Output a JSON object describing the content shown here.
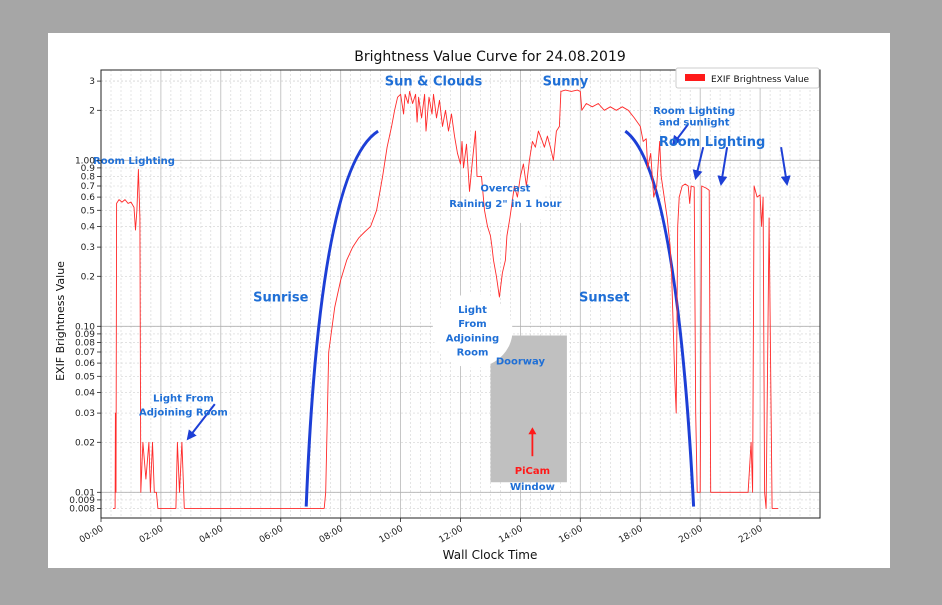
{
  "chart_data": {
    "type": "line",
    "title": "Brightness Value Curve for 24.08.2019",
    "xlabel": "Wall Clock Time",
    "ylabel": "EXIF Brightness Value",
    "yscale": "log",
    "xlim": [
      0,
      24
    ],
    "ylim": [
      0.007,
      3.5
    ],
    "grid": true,
    "legend": {
      "position": "top-right",
      "entries": [
        "EXIF Brightness Value"
      ]
    },
    "x_ticks": [
      {
        "v": 0,
        "label": "00:00"
      },
      {
        "v": 2,
        "label": "02:00"
      },
      {
        "v": 4,
        "label": "04:00"
      },
      {
        "v": 6,
        "label": "06:00"
      },
      {
        "v": 8,
        "label": "08:00"
      },
      {
        "v": 10,
        "label": "10:00"
      },
      {
        "v": 12,
        "label": "12:00"
      },
      {
        "v": 14,
        "label": "14:00"
      },
      {
        "v": 16,
        "label": "16:00"
      },
      {
        "v": 18,
        "label": "18:00"
      },
      {
        "v": 20,
        "label": "20:00"
      },
      {
        "v": 22,
        "label": "22:00"
      }
    ],
    "y_ticks": [
      {
        "v": 3,
        "label": "3"
      },
      {
        "v": 2,
        "label": "2"
      },
      {
        "v": 1,
        "label": "1.00"
      },
      {
        "v": 0.9,
        "label": "0.9"
      },
      {
        "v": 0.8,
        "label": "0.8"
      },
      {
        "v": 0.7,
        "label": "0.7"
      },
      {
        "v": 0.6,
        "label": "0.6"
      },
      {
        "v": 0.5,
        "label": "0.5"
      },
      {
        "v": 0.4,
        "label": "0.4"
      },
      {
        "v": 0.3,
        "label": "0.3"
      },
      {
        "v": 0.2,
        "label": "0.2"
      },
      {
        "v": 0.1,
        "label": "0.10"
      },
      {
        "v": 0.09,
        "label": "0.09"
      },
      {
        "v": 0.08,
        "label": "0.08"
      },
      {
        "v": 0.07,
        "label": "0.07"
      },
      {
        "v": 0.06,
        "label": "0.06"
      },
      {
        "v": 0.05,
        "label": "0.05"
      },
      {
        "v": 0.04,
        "label": "0.04"
      },
      {
        "v": 0.03,
        "label": "0.03"
      },
      {
        "v": 0.02,
        "label": "0.02"
      },
      {
        "v": 0.01,
        "label": "0.01"
      },
      {
        "v": 0.009,
        "label": "0.009"
      },
      {
        "v": 0.008,
        "label": "0.008"
      }
    ],
    "series": [
      {
        "name": "EXIF Brightness Value",
        "color": "#ff2a2a",
        "points": [
          [
            0.4,
            0.008
          ],
          [
            0.47,
            0.008
          ],
          [
            0.48,
            0.03
          ],
          [
            0.5,
            0.01
          ],
          [
            0.52,
            0.55
          ],
          [
            0.6,
            0.58
          ],
          [
            0.7,
            0.56
          ],
          [
            0.8,
            0.58
          ],
          [
            0.9,
            0.55
          ],
          [
            1.0,
            0.56
          ],
          [
            1.1,
            0.52
          ],
          [
            1.15,
            0.38
          ],
          [
            1.2,
            0.5
          ],
          [
            1.25,
            0.88
          ],
          [
            1.3,
            0.45
          ],
          [
            1.33,
            0.01
          ],
          [
            1.4,
            0.02
          ],
          [
            1.5,
            0.012
          ],
          [
            1.6,
            0.02
          ],
          [
            1.65,
            0.01
          ],
          [
            1.72,
            0.02
          ],
          [
            1.78,
            0.01
          ],
          [
            1.85,
            0.01
          ],
          [
            1.9,
            0.008
          ],
          [
            2.5,
            0.008
          ],
          [
            2.55,
            0.02
          ],
          [
            2.62,
            0.01
          ],
          [
            2.7,
            0.02
          ],
          [
            2.78,
            0.008
          ],
          [
            7.0,
            0.008
          ],
          [
            7.45,
            0.008
          ],
          [
            7.5,
            0.01
          ],
          [
            7.6,
            0.07
          ],
          [
            7.8,
            0.13
          ],
          [
            8.0,
            0.19
          ],
          [
            8.2,
            0.25
          ],
          [
            8.4,
            0.3
          ],
          [
            8.6,
            0.34
          ],
          [
            8.8,
            0.37
          ],
          [
            9.0,
            0.4
          ],
          [
            9.2,
            0.5
          ],
          [
            9.4,
            0.8
          ],
          [
            9.55,
            1.2
          ],
          [
            9.7,
            1.6
          ],
          [
            9.8,
            2.0
          ],
          [
            9.9,
            2.4
          ],
          [
            10.0,
            2.5
          ],
          [
            10.1,
            1.9
          ],
          [
            10.15,
            2.5
          ],
          [
            10.25,
            2.2
          ],
          [
            10.3,
            2.6
          ],
          [
            10.4,
            2.2
          ],
          [
            10.5,
            2.5
          ],
          [
            10.55,
            1.7
          ],
          [
            10.6,
            2.4
          ],
          [
            10.7,
            1.8
          ],
          [
            10.8,
            2.5
          ],
          [
            10.85,
            1.5
          ],
          [
            10.95,
            2.4
          ],
          [
            11.05,
            1.9
          ],
          [
            11.1,
            2.5
          ],
          [
            11.2,
            1.8
          ],
          [
            11.3,
            2.3
          ],
          [
            11.4,
            1.6
          ],
          [
            11.5,
            2.0
          ],
          [
            11.6,
            1.5
          ],
          [
            11.7,
            1.9
          ],
          [
            11.8,
            1.4
          ],
          [
            11.9,
            1.1
          ],
          [
            12.0,
            0.95
          ],
          [
            12.05,
            1.3
          ],
          [
            12.1,
            0.9
          ],
          [
            12.2,
            1.25
          ],
          [
            12.3,
            0.65
          ],
          [
            12.4,
            1.0
          ],
          [
            12.5,
            1.5
          ],
          [
            12.55,
            0.8
          ],
          [
            12.7,
            0.8
          ],
          [
            12.8,
            0.5
          ],
          [
            12.9,
            0.4
          ],
          [
            13.0,
            0.35
          ],
          [
            13.05,
            0.3
          ],
          [
            13.1,
            0.25
          ],
          [
            13.2,
            0.2
          ],
          [
            13.3,
            0.15
          ],
          [
            13.4,
            0.21
          ],
          [
            13.5,
            0.25
          ],
          [
            13.55,
            0.35
          ],
          [
            13.65,
            0.45
          ],
          [
            13.8,
            0.7
          ],
          [
            13.9,
            0.6
          ],
          [
            14.0,
            0.8
          ],
          [
            14.1,
            0.95
          ],
          [
            14.2,
            0.7
          ],
          [
            14.3,
            1.0
          ],
          [
            14.4,
            1.3
          ],
          [
            14.5,
            1.2
          ],
          [
            14.6,
            1.5
          ],
          [
            14.7,
            1.35
          ],
          [
            14.8,
            1.2
          ],
          [
            14.9,
            1.4
          ],
          [
            15.0,
            1.2
          ],
          [
            15.1,
            1.0
          ],
          [
            15.2,
            1.5
          ],
          [
            15.3,
            1.6
          ],
          [
            15.35,
            2.6
          ],
          [
            15.5,
            2.65
          ],
          [
            15.7,
            2.6
          ],
          [
            15.9,
            2.65
          ],
          [
            16.0,
            2.6
          ],
          [
            16.05,
            2.0
          ],
          [
            16.2,
            2.2
          ],
          [
            16.4,
            2.1
          ],
          [
            16.6,
            2.2
          ],
          [
            16.8,
            2.0
          ],
          [
            17.0,
            2.1
          ],
          [
            17.2,
            2.0
          ],
          [
            17.4,
            2.1
          ],
          [
            17.6,
            2.0
          ],
          [
            17.8,
            1.8
          ],
          [
            18.0,
            1.6
          ],
          [
            18.1,
            1.3
          ],
          [
            18.2,
            1.35
          ],
          [
            18.25,
            0.9
          ],
          [
            18.35,
            1.1
          ],
          [
            18.45,
            0.6
          ],
          [
            18.55,
            0.7
          ],
          [
            18.65,
            1.3
          ],
          [
            18.7,
            0.8
          ],
          [
            18.8,
            0.6
          ],
          [
            18.9,
            0.45
          ],
          [
            19.0,
            0.3
          ],
          [
            19.05,
            0.2
          ],
          [
            19.1,
            0.1
          ],
          [
            19.15,
            0.05
          ],
          [
            19.2,
            0.03
          ],
          [
            19.25,
            0.4
          ],
          [
            19.3,
            0.6
          ],
          [
            19.4,
            0.7
          ],
          [
            19.5,
            0.72
          ],
          [
            19.6,
            0.7
          ],
          [
            19.65,
            0.55
          ],
          [
            19.7,
            0.7
          ],
          [
            19.8,
            0.69
          ],
          [
            19.85,
            0.03
          ],
          [
            19.9,
            0.01
          ],
          [
            20.0,
            0.01
          ],
          [
            20.05,
            0.7
          ],
          [
            20.2,
            0.68
          ],
          [
            20.3,
            0.66
          ],
          [
            20.35,
            0.01
          ],
          [
            20.5,
            0.01
          ],
          [
            21.5,
            0.01
          ],
          [
            21.6,
            0.01
          ],
          [
            21.7,
            0.02
          ],
          [
            21.75,
            0.01
          ],
          [
            21.8,
            0.7
          ],
          [
            21.9,
            0.6
          ],
          [
            22.0,
            0.62
          ],
          [
            22.05,
            0.4
          ],
          [
            22.1,
            0.6
          ],
          [
            22.15,
            0.01
          ],
          [
            22.2,
            0.008
          ],
          [
            22.3,
            0.45
          ],
          [
            22.4,
            0.008
          ],
          [
            22.6,
            0.008
          ]
        ]
      }
    ],
    "annotations": [
      {
        "text": "Room Lighting",
        "x": 1.1,
        "y": 1.0
      },
      {
        "text": "Sun & Clouds",
        "x": 11.1,
        "y": 3.0
      },
      {
        "text": "Sunny",
        "x": 15.5,
        "y": 3.0
      },
      {
        "text": "Room Lighting",
        "x": 19.8,
        "y": 2.0
      },
      {
        "text": "and sunlight",
        "x": 19.8,
        "y": 1.7
      },
      {
        "text": "Room Lighting",
        "x": 20.4,
        "y": 1.3
      },
      {
        "text": "Overcast",
        "x": 13.5,
        "y": 0.68
      },
      {
        "text": "Raining 2\" in 1 hour",
        "x": 13.5,
        "y": 0.55
      },
      {
        "text": "Sunrise",
        "x": 6.0,
        "y": 0.15
      },
      {
        "text": "Sunset",
        "x": 16.8,
        "y": 0.15
      },
      {
        "text": "Light",
        "x": 12.4,
        "y": 0.126
      },
      {
        "text": "From",
        "x": 12.4,
        "y": 0.104
      },
      {
        "text": "Adjoining",
        "x": 12.4,
        "y": 0.085
      },
      {
        "text": "Room",
        "x": 12.4,
        "y": 0.07
      },
      {
        "text": "Doorway",
        "x": 14.0,
        "y": 0.062
      },
      {
        "text": "Light From",
        "x": 2.75,
        "y": 0.037
      },
      {
        "text": "Adjoining Room",
        "x": 2.75,
        "y": 0.0305
      },
      {
        "text": "PiCam",
        "x": 14.4,
        "y": 0.0135
      },
      {
        "text": "Window",
        "x": 14.4,
        "y": 0.0108
      }
    ],
    "colors": {
      "line": "#ff2a2a",
      "annotation": "#1f6fd6",
      "curve": "#1d3fd6",
      "arrow": "#1d3fd6",
      "picam": "#ff1a1a",
      "doorway": "#c0c0c0"
    }
  }
}
